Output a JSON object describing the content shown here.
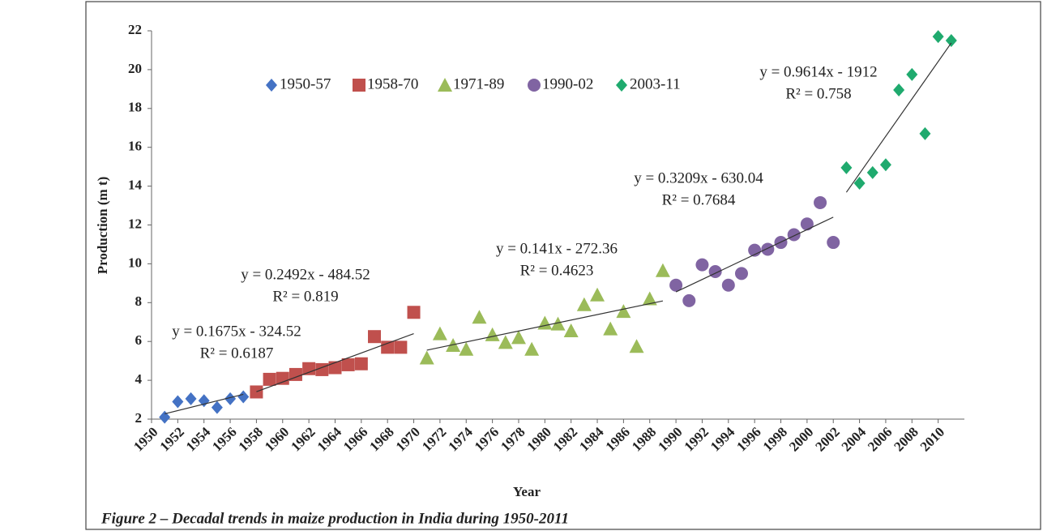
{
  "chart_data": {
    "type": "scatter",
    "caption": "Figure 2 – Decadal trends in maize production in India during 1950-2011",
    "x_label": "Year",
    "y_label": "Production (m t)",
    "xlim": [
      1950,
      2012
    ],
    "xticks": [
      1950,
      1952,
      1954,
      1956,
      1958,
      1960,
      1962,
      1964,
      1966,
      1968,
      1970,
      1972,
      1974,
      1976,
      1978,
      1980,
      1982,
      1984,
      1986,
      1988,
      1990,
      1992,
      1994,
      1996,
      1998,
      2000,
      2002,
      2004,
      2006,
      2008,
      2010
    ],
    "ylim": [
      2,
      22
    ],
    "yticks": [
      2,
      4,
      6,
      8,
      10,
      12,
      14,
      16,
      18,
      20,
      22
    ],
    "legend": "top",
    "series": [
      {
        "name": "1950-57",
        "color": "#4472C4",
        "marker": "diamond",
        "x": [
          1951,
          1952,
          1953,
          1954,
          1955,
          1956,
          1957
        ],
        "values": [
          2.1,
          2.9,
          3.05,
          2.95,
          2.6,
          3.05,
          3.15
        ],
        "trendline": {
          "equation": "y = 0.1675x - 324.52",
          "r_squared": "R² = 0.6187",
          "slope": 0.1675,
          "intercept": -324.52
        }
      },
      {
        "name": "1958-70",
        "color": "#C0504D",
        "marker": "square",
        "x": [
          1958,
          1959,
          1960,
          1961,
          1962,
          1963,
          1964,
          1965,
          1966,
          1967,
          1968,
          1969,
          1970
        ],
        "values": [
          3.4,
          4.05,
          4.1,
          4.3,
          4.6,
          4.55,
          4.65,
          4.8,
          4.85,
          6.25,
          5.7,
          5.7,
          7.5
        ],
        "trendline": {
          "equation": "y = 0.2492x - 484.52",
          "r_squared": "R² = 0.819",
          "slope": 0.2492,
          "intercept": -484.52
        }
      },
      {
        "name": "1971-89",
        "color": "#9BBB59",
        "marker": "triangle",
        "x": [
          1971,
          1972,
          1973,
          1974,
          1975,
          1976,
          1977,
          1978,
          1979,
          1980,
          1981,
          1982,
          1983,
          1984,
          1985,
          1986,
          1987,
          1988,
          1989
        ],
        "values": [
          5.15,
          6.4,
          5.8,
          5.6,
          7.25,
          6.35,
          5.95,
          6.2,
          5.6,
          6.95,
          6.9,
          6.55,
          7.9,
          8.4,
          6.65,
          7.55,
          5.75,
          8.2,
          9.65
        ],
        "trendline": {
          "equation": "y = 0.141x - 272.36",
          "r_squared": "R² = 0.4623",
          "slope": 0.141,
          "intercept": -272.36
        }
      },
      {
        "name": "1990-02",
        "color": "#8064A2",
        "marker": "circle",
        "x": [
          1990,
          1991,
          1992,
          1993,
          1994,
          1995,
          1996,
          1997,
          1998,
          1999,
          2000,
          2001,
          2002
        ],
        "values": [
          8.9,
          8.1,
          9.95,
          9.6,
          8.9,
          9.5,
          10.7,
          10.75,
          11.1,
          11.5,
          12.05,
          13.15,
          11.1
        ],
        "trendline": {
          "equation": "y = 0.3209x - 630.04",
          "r_squared": "R² = 0.7684",
          "slope": 0.3209,
          "intercept": -630.04
        }
      },
      {
        "name": "2003-11",
        "color": "#1FAA6E",
        "marker": "diamond",
        "x": [
          2003,
          2004,
          2005,
          2006,
          2007,
          2008,
          2009,
          2010,
          2011
        ],
        "values": [
          14.95,
          14.15,
          14.7,
          15.1,
          18.95,
          19.75,
          16.7,
          21.7,
          21.5
        ],
        "trendline": {
          "equation": "y = 0.9614x - 1912",
          "r_squared": "R² = 0.758",
          "slope": 0.9614,
          "intercept": -1912
        }
      }
    ]
  }
}
